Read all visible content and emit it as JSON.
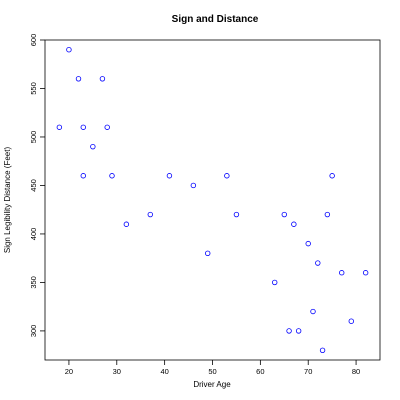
{
  "chart_data": {
    "type": "scatter",
    "title": "Sign and Distance",
    "xlabel": "Driver Age",
    "ylabel": "Sign Legibility Distance (Feet)",
    "xlim": [
      15,
      85
    ],
    "ylim": [
      270,
      600
    ],
    "xticks": [
      20,
      30,
      40,
      50,
      60,
      70,
      80
    ],
    "yticks": [
      300,
      350,
      400,
      450,
      500,
      550,
      600
    ],
    "marker_color": "#0000ff",
    "grid": false,
    "points": [
      {
        "x": 18,
        "y": 510
      },
      {
        "x": 20,
        "y": 590
      },
      {
        "x": 22,
        "y": 560
      },
      {
        "x": 23,
        "y": 510
      },
      {
        "x": 23,
        "y": 460
      },
      {
        "x": 25,
        "y": 490
      },
      {
        "x": 27,
        "y": 560
      },
      {
        "x": 28,
        "y": 510
      },
      {
        "x": 29,
        "y": 460
      },
      {
        "x": 32,
        "y": 410
      },
      {
        "x": 37,
        "y": 420
      },
      {
        "x": 41,
        "y": 460
      },
      {
        "x": 46,
        "y": 450
      },
      {
        "x": 49,
        "y": 380
      },
      {
        "x": 53,
        "y": 460
      },
      {
        "x": 55,
        "y": 420
      },
      {
        "x": 63,
        "y": 350
      },
      {
        "x": 65,
        "y": 420
      },
      {
        "x": 66,
        "y": 300
      },
      {
        "x": 67,
        "y": 410
      },
      {
        "x": 68,
        "y": 300
      },
      {
        "x": 70,
        "y": 390
      },
      {
        "x": 71,
        "y": 320
      },
      {
        "x": 72,
        "y": 370
      },
      {
        "x": 73,
        "y": 280
      },
      {
        "x": 74,
        "y": 420
      },
      {
        "x": 75,
        "y": 460
      },
      {
        "x": 77,
        "y": 360
      },
      {
        "x": 79,
        "y": 310
      },
      {
        "x": 82,
        "y": 360
      }
    ]
  }
}
